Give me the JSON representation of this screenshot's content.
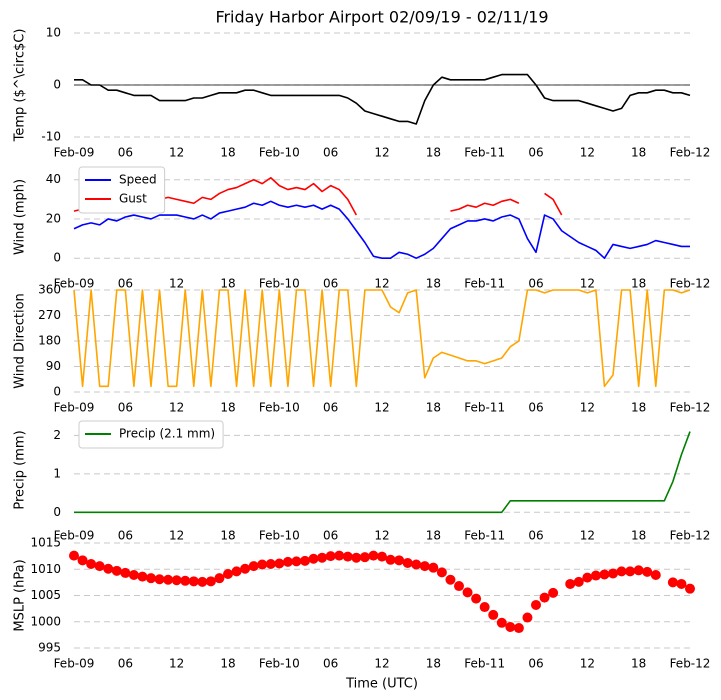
{
  "chart_data": [
    {
      "type": "line",
      "title": "Friday Harbor Airport 02/09/19 - 02/11/19",
      "ylabel": "Temp ($^\\circ$C)",
      "x": [
        0,
        1,
        2,
        3,
        4,
        5,
        6,
        7,
        8,
        9,
        10,
        11,
        12,
        13,
        14,
        15,
        16,
        17,
        18,
        19,
        20,
        21,
        22,
        23,
        24,
        25,
        26,
        27,
        28,
        29,
        30,
        31,
        32,
        33,
        34,
        35,
        36,
        37,
        38,
        39,
        40,
        41,
        42,
        43,
        44,
        45,
        46,
        47,
        48,
        49,
        50,
        51,
        52,
        53,
        54,
        55,
        56,
        57,
        58,
        59,
        60,
        61,
        62,
        63,
        64,
        65,
        66,
        67,
        68,
        69,
        70,
        71,
        72
      ],
      "series": [
        {
          "color": "#000000",
          "values": [
            1,
            1,
            0,
            0,
            -1,
            -1,
            -1.5,
            -2,
            -2,
            -2,
            -3,
            -3,
            -3,
            -3,
            -2.5,
            -2.5,
            -2,
            -1.5,
            -1.5,
            -1.5,
            -1,
            -1,
            -1.5,
            -2,
            -2,
            -2,
            -2,
            -2,
            -2,
            -2,
            -2,
            -2,
            -2.5,
            -3.5,
            -5,
            -5.5,
            -6,
            -6.5,
            -7,
            -7,
            -7.5,
            -3,
            0,
            1.5,
            1,
            1,
            1,
            1,
            1,
            1.5,
            2,
            2,
            2,
            2,
            0,
            -2.5,
            -3,
            -3,
            -3,
            -3,
            -3.5,
            -4,
            -4.5,
            -5,
            -4.5,
            -2,
            -1.5,
            -1.5,
            -1,
            -1,
            -1.5,
            -1.5,
            -2
          ]
        }
      ],
      "hline": 0,
      "xlim": [
        0,
        72
      ],
      "xticks": [
        {
          "value": 0,
          "label": "Feb-09"
        },
        {
          "value": 6,
          "label": "06"
        },
        {
          "value": 12,
          "label": "12"
        },
        {
          "value": 18,
          "label": "18"
        },
        {
          "value": 24,
          "label": "Feb-10"
        },
        {
          "value": 30,
          "label": "06"
        },
        {
          "value": 36,
          "label": "12"
        },
        {
          "value": 42,
          "label": "18"
        },
        {
          "value": 48,
          "label": "Feb-11"
        },
        {
          "value": 54,
          "label": "06"
        },
        {
          "value": 60,
          "label": "12"
        },
        {
          "value": 66,
          "label": "18"
        },
        {
          "value": 72,
          "label": "Feb-12"
        }
      ],
      "ylim": [
        -10,
        10
      ],
      "yticks": [
        -10,
        0,
        10
      ],
      "grid": true
    },
    {
      "type": "line",
      "ylabel": "Wind (mph)",
      "legend": "upper left",
      "x": [
        0,
        1,
        2,
        3,
        4,
        5,
        6,
        7,
        8,
        9,
        10,
        11,
        12,
        13,
        14,
        15,
        16,
        17,
        18,
        19,
        20,
        21,
        22,
        23,
        24,
        25,
        26,
        27,
        28,
        29,
        30,
        31,
        32,
        33,
        34,
        35,
        36,
        37,
        38,
        39,
        40,
        41,
        42,
        43,
        44,
        45,
        46,
        47,
        48,
        49,
        50,
        51,
        52,
        53,
        54,
        55,
        56,
        57,
        58,
        59,
        60,
        61,
        62,
        63,
        64,
        65,
        66,
        67,
        68,
        69,
        70,
        71,
        72
      ],
      "series": [
        {
          "name": "Speed",
          "color": "#0000ff",
          "values": [
            15,
            17,
            18,
            17,
            20,
            19,
            21,
            22,
            21,
            20,
            22,
            22,
            22,
            21,
            20,
            22,
            20,
            23,
            24,
            25,
            26,
            28,
            27,
            29,
            27,
            26,
            27,
            26,
            27,
            25,
            27,
            25,
            20,
            14,
            8,
            1,
            0,
            0,
            3,
            2,
            0,
            2,
            5,
            10,
            15,
            17,
            19,
            19,
            20,
            19,
            21,
            22,
            20,
            10,
            3,
            22,
            20,
            14,
            11,
            8,
            6,
            4,
            0,
            7,
            6,
            5,
            6,
            7,
            9,
            8,
            7,
            6,
            6
          ]
        },
        {
          "name": "Gust",
          "color": "#ff0000",
          "values": [
            24,
            25,
            27,
            24,
            28,
            27,
            30,
            29,
            28,
            27,
            30,
            31,
            30,
            29,
            28,
            31,
            30,
            33,
            35,
            36,
            38,
            40,
            38,
            41,
            37,
            35,
            36,
            35,
            38,
            34,
            37,
            35,
            30,
            22,
            null,
            null,
            null,
            null,
            null,
            null,
            null,
            null,
            null,
            null,
            24,
            25,
            27,
            26,
            28,
            27,
            29,
            30,
            28,
            null,
            null,
            33,
            30,
            22,
            null,
            null,
            null,
            null,
            null,
            null,
            null,
            null,
            null,
            null,
            null,
            null,
            null,
            null,
            null
          ]
        }
      ],
      "xlim": [
        0,
        72
      ],
      "xticks": [
        {
          "value": 0,
          "label": "Feb-09"
        },
        {
          "value": 6,
          "label": "06"
        },
        {
          "value": 12,
          "label": "12"
        },
        {
          "value": 18,
          "label": "18"
        },
        {
          "value": 24,
          "label": "Feb-10"
        },
        {
          "value": 30,
          "label": "06"
        },
        {
          "value": 36,
          "label": "12"
        },
        {
          "value": 42,
          "label": "18"
        },
        {
          "value": 48,
          "label": "Feb-11"
        },
        {
          "value": 54,
          "label": "06"
        },
        {
          "value": 60,
          "label": "12"
        },
        {
          "value": 66,
          "label": "18"
        },
        {
          "value": 72,
          "label": "Feb-12"
        }
      ],
      "ylim": [
        -5,
        47
      ],
      "yticks": [
        0,
        20,
        40
      ],
      "grid": true
    },
    {
      "type": "line",
      "ylabel": "Wind Direction",
      "x": [
        0,
        1,
        2,
        3,
        4,
        5,
        6,
        7,
        8,
        9,
        10,
        11,
        12,
        13,
        14,
        15,
        16,
        17,
        18,
        19,
        20,
        21,
        22,
        23,
        24,
        25,
        26,
        27,
        28,
        29,
        30,
        31,
        32,
        33,
        34,
        35,
        36,
        37,
        38,
        39,
        40,
        41,
        42,
        43,
        44,
        45,
        46,
        47,
        48,
        49,
        50,
        51,
        52,
        53,
        54,
        55,
        56,
        57,
        58,
        59,
        60,
        61,
        62,
        63,
        64,
        65,
        66,
        67,
        68,
        69,
        70,
        71,
        72
      ],
      "series": [
        {
          "color": "#ffa500",
          "values": [
            360,
            20,
            360,
            20,
            20,
            360,
            360,
            20,
            360,
            20,
            360,
            20,
            20,
            360,
            20,
            360,
            20,
            360,
            360,
            20,
            360,
            20,
            360,
            20,
            360,
            20,
            360,
            360,
            20,
            360,
            20,
            360,
            360,
            20,
            360,
            360,
            360,
            300,
            280,
            350,
            360,
            50,
            120,
            140,
            130,
            120,
            110,
            110,
            100,
            110,
            120,
            160,
            180,
            360,
            360,
            350,
            360,
            360,
            360,
            360,
            350,
            360,
            20,
            60,
            360,
            360,
            20,
            360,
            20,
            360,
            360,
            350,
            360
          ]
        }
      ],
      "xlim": [
        0,
        72
      ],
      "xticks": [
        {
          "value": 0,
          "label": "Feb-09"
        },
        {
          "value": 6,
          "label": "06"
        },
        {
          "value": 12,
          "label": "12"
        },
        {
          "value": 18,
          "label": "18"
        },
        {
          "value": 24,
          "label": "Feb-10"
        },
        {
          "value": 30,
          "label": "06"
        },
        {
          "value": 36,
          "label": "12"
        },
        {
          "value": 42,
          "label": "18"
        },
        {
          "value": 48,
          "label": "Feb-11"
        },
        {
          "value": 54,
          "label": "06"
        },
        {
          "value": 60,
          "label": "12"
        },
        {
          "value": 66,
          "label": "18"
        },
        {
          "value": 72,
          "label": "Feb-12"
        }
      ],
      "ylim": [
        0,
        360
      ],
      "yticks": [
        0,
        90,
        180,
        270,
        360
      ],
      "grid": true
    },
    {
      "type": "line",
      "ylabel": "Precip (mm)",
      "legend": "upper left",
      "x": [
        0,
        1,
        2,
        3,
        4,
        5,
        6,
        7,
        8,
        9,
        10,
        11,
        12,
        13,
        14,
        15,
        16,
        17,
        18,
        19,
        20,
        21,
        22,
        23,
        24,
        25,
        26,
        27,
        28,
        29,
        30,
        31,
        32,
        33,
        34,
        35,
        36,
        37,
        38,
        39,
        40,
        41,
        42,
        43,
        44,
        45,
        46,
        47,
        48,
        49,
        50,
        51,
        52,
        53,
        54,
        55,
        56,
        57,
        58,
        59,
        60,
        61,
        62,
        63,
        64,
        65,
        66,
        67,
        68,
        69,
        70,
        71,
        72
      ],
      "series": [
        {
          "name": "Precip (2.1 mm)",
          "color": "#008000",
          "values": [
            0,
            0,
            0,
            0,
            0,
            0,
            0,
            0,
            0,
            0,
            0,
            0,
            0,
            0,
            0,
            0,
            0,
            0,
            0,
            0,
            0,
            0,
            0,
            0,
            0,
            0,
            0,
            0,
            0,
            0,
            0,
            0,
            0,
            0,
            0,
            0,
            0,
            0,
            0,
            0,
            0,
            0,
            0,
            0,
            0,
            0,
            0,
            0,
            0,
            0,
            0,
            0.3,
            0.3,
            0.3,
            0.3,
            0.3,
            0.3,
            0.3,
            0.3,
            0.3,
            0.3,
            0.3,
            0.3,
            0.3,
            0.3,
            0.3,
            0.3,
            0.3,
            0.3,
            0.3,
            0.8,
            1.5,
            2.1
          ]
        }
      ],
      "xlim": [
        0,
        72
      ],
      "xticks": [
        {
          "value": 0,
          "label": "Feb-09"
        },
        {
          "value": 6,
          "label": "06"
        },
        {
          "value": 12,
          "label": "12"
        },
        {
          "value": 18,
          "label": "18"
        },
        {
          "value": 24,
          "label": "Feb-10"
        },
        {
          "value": 30,
          "label": "06"
        },
        {
          "value": 36,
          "label": "12"
        },
        {
          "value": 42,
          "label": "18"
        },
        {
          "value": 48,
          "label": "Feb-11"
        },
        {
          "value": 54,
          "label": "06"
        },
        {
          "value": 60,
          "label": "12"
        },
        {
          "value": 66,
          "label": "18"
        },
        {
          "value": 72,
          "label": "Feb-12"
        }
      ],
      "ylim": [
        -0.2,
        2.4
      ],
      "yticks": [
        0,
        1,
        2
      ],
      "grid": true
    },
    {
      "type": "scatter",
      "ylabel": "MSLP (hPa)",
      "xlabel": "Time (UTC)",
      "x": [
        0,
        1,
        2,
        3,
        4,
        5,
        6,
        7,
        8,
        9,
        10,
        11,
        12,
        13,
        14,
        15,
        16,
        17,
        18,
        19,
        20,
        21,
        22,
        23,
        24,
        25,
        26,
        27,
        28,
        29,
        30,
        31,
        32,
        33,
        34,
        35,
        36,
        37,
        38,
        39,
        40,
        41,
        42,
        43,
        44,
        45,
        46,
        47,
        48,
        49,
        50,
        51,
        52,
        53,
        54,
        55,
        56,
        57,
        58,
        59,
        60,
        61,
        62,
        63,
        64,
        65,
        66,
        67,
        68,
        69,
        70,
        71,
        72
      ],
      "series": [
        {
          "color": "#ff0000",
          "values": [
            1012.6,
            1011.7,
            1011.0,
            1010.6,
            1010.1,
            1009.7,
            1009.3,
            1008.9,
            1008.6,
            1008.3,
            1008.1,
            1008.0,
            1007.9,
            1007.8,
            1007.7,
            1007.6,
            1007.7,
            1008.3,
            1009.1,
            1009.6,
            1010.1,
            1010.6,
            1010.9,
            1011.0,
            1011.1,
            1011.4,
            1011.5,
            1011.6,
            1012.0,
            1012.2,
            1012.5,
            1012.6,
            1012.4,
            1012.2,
            1012.3,
            1012.6,
            1012.4,
            1011.8,
            1011.7,
            1011.2,
            1010.9,
            1010.6,
            1010.3,
            1009.4,
            1008.0,
            1006.8,
            1005.6,
            1004.4,
            1002.8,
            1001.3,
            999.8,
            999.0,
            998.8,
            1000.8,
            1003.2,
            1004.6,
            1005.5,
            null,
            1007.2,
            1007.6,
            1008.4,
            1008.8,
            1009.0,
            1009.2,
            1009.6,
            1009.6,
            1009.8,
            1009.5,
            1008.9,
            null,
            1007.5,
            1007.2,
            1006.3
          ]
        }
      ],
      "xlim": [
        0,
        72
      ],
      "xticks": [
        {
          "value": 0,
          "label": "Feb-09"
        },
        {
          "value": 6,
          "label": "06"
        },
        {
          "value": 12,
          "label": "12"
        },
        {
          "value": 18,
          "label": "18"
        },
        {
          "value": 24,
          "label": "Feb-10"
        },
        {
          "value": 30,
          "label": "06"
        },
        {
          "value": 36,
          "label": "12"
        },
        {
          "value": 42,
          "label": "18"
        },
        {
          "value": 48,
          "label": "Feb-11"
        },
        {
          "value": 54,
          "label": "06"
        },
        {
          "value": 60,
          "label": "12"
        },
        {
          "value": 66,
          "label": "18"
        },
        {
          "value": 72,
          "label": "Feb-12"
        }
      ],
      "ylim": [
        995,
        1015
      ],
      "yticks": [
        995,
        1000,
        1005,
        1010,
        1015
      ],
      "grid": true
    }
  ]
}
